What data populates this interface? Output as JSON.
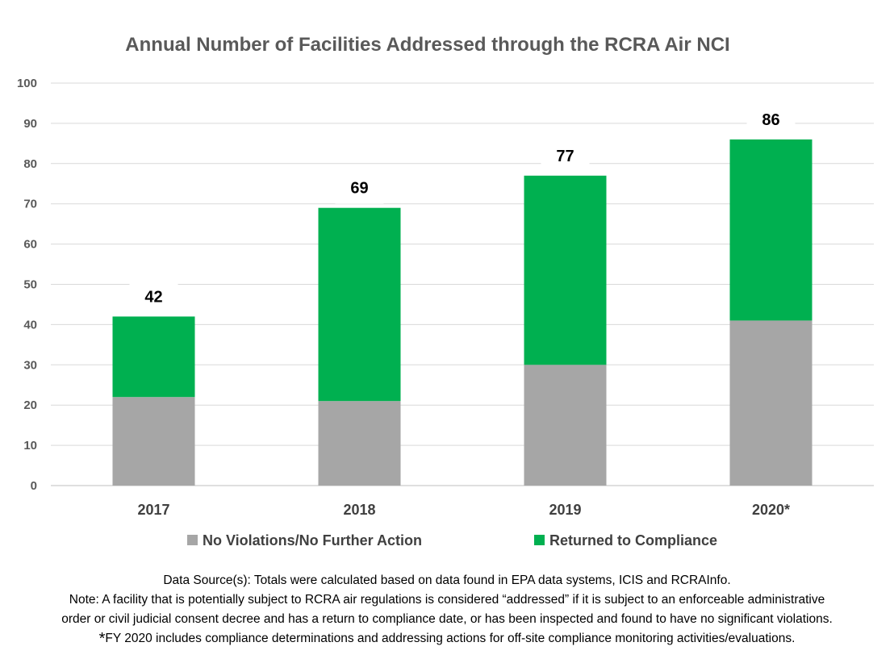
{
  "chart_data": {
    "type": "bar",
    "stacked": true,
    "title": "Annual Number of Facilities Addressed through the RCRA Air NCI",
    "categories": [
      "2017",
      "2018",
      "2019",
      "2020*"
    ],
    "series": [
      {
        "name": "No Violations/No Further Action",
        "color": "#a6a6a6",
        "values": [
          22,
          21,
          30,
          41
        ]
      },
      {
        "name": "Returned to Compliance",
        "color": "#00b050",
        "values": [
          20,
          48,
          47,
          45
        ]
      }
    ],
    "totals": [
      "42",
      "69",
      "77",
      "86"
    ],
    "ylim": [
      0,
      100
    ],
    "yticks": [
      "0",
      "10",
      "20",
      "30",
      "40",
      "50",
      "60",
      "70",
      "80",
      "90",
      "100"
    ],
    "grid": true,
    "legend": "bottom",
    "xlabel": "",
    "ylabel": ""
  },
  "notes": {
    "source": "Data Source(s): Totals were calculated based on data found in EPA data systems, ICIS and RCRAInfo.",
    "note_line1": "Note: A facility that is potentially subject to RCRA air regulations is considered “addressed” if it is subject to an enforceable administrative",
    "note_line2": "order or civil judicial consent decree and has a return to compliance date, or has been inspected and found to have no significant violations.",
    "footnote_mark": "*",
    "footnote": "FY 2020 includes compliance determinations and addressing actions for off-site compliance monitoring activities/evaluations."
  }
}
